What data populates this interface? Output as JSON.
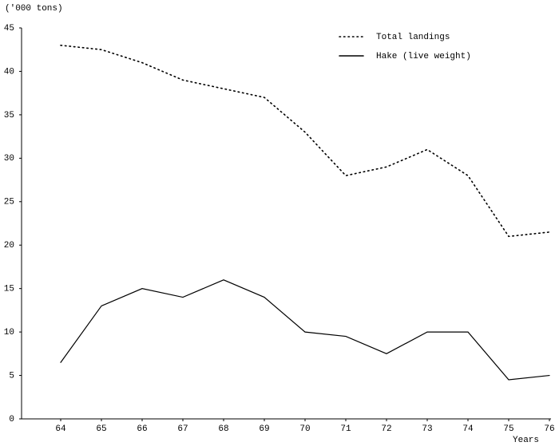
{
  "chart_data": {
    "type": "line",
    "y_label": "('000 tons)",
    "x_label": "Years",
    "x": [
      64,
      65,
      66,
      67,
      68,
      69,
      70,
      71,
      72,
      73,
      74,
      75,
      76
    ],
    "series": [
      {
        "name": "Total landings",
        "color": "#000000",
        "style": "dotted",
        "values": [
          43,
          42.5,
          41,
          39,
          38,
          37,
          33,
          28,
          29,
          31,
          28,
          21,
          21.5
        ]
      },
      {
        "name": "Hake (live weight)",
        "color": "#000000",
        "style": "solid",
        "values": [
          6.5,
          13,
          15,
          14,
          16,
          14,
          10,
          9.5,
          7.5,
          10,
          10,
          4.5,
          5
        ]
      }
    ],
    "xlim": [
      63,
      76
    ],
    "xticks": [
      64,
      65,
      66,
      67,
      68,
      69,
      70,
      71,
      72,
      73,
      74,
      75,
      76
    ],
    "ylim": [
      0,
      45
    ],
    "yticks": [
      0,
      5,
      10,
      15,
      20,
      25,
      30,
      35,
      40,
      45
    ],
    "grid": false,
    "legend": "upper right"
  }
}
